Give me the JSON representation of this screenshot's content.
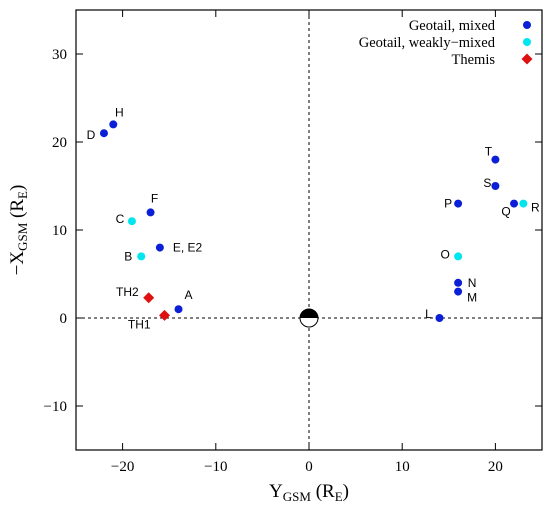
{
  "chart_data": {
    "type": "scatter",
    "xlabel": {
      "main": "Y",
      "sub": "GSM",
      "paren": " (R",
      "unit_sub": "E",
      "close": ")"
    },
    "ylabel": {
      "main": "−X",
      "sub": "GSM",
      "paren": " (R",
      "unit_sub": "E",
      "close": ")"
    },
    "xlim": [
      -25,
      25
    ],
    "ylim": [
      -15,
      35
    ],
    "xticks": [
      -20,
      -10,
      0,
      10,
      20
    ],
    "yticks": [
      -10,
      0,
      10,
      20,
      30
    ],
    "xtick_labels": [
      "−20",
      "−10",
      "0",
      "10",
      "20"
    ],
    "ytick_labels": [
      "−10",
      "0",
      "10",
      "20",
      "30"
    ],
    "grid": false,
    "reference_lines": {
      "x": 0,
      "y": 0,
      "style": "dashed"
    },
    "legend_position": "top-right",
    "colors": {
      "mixed": "#0a1fd6",
      "weakly_mixed": "#00e6ee",
      "themis": "#e01010"
    },
    "series": [
      {
        "name": "Geotail, mixed",
        "marker": "circle",
        "points": [
          {
            "label": "H",
            "x": -21,
            "y": 22
          },
          {
            "label": "D",
            "x": -22,
            "y": 21
          },
          {
            "label": "F",
            "x": -17,
            "y": 12
          },
          {
            "label": "E, E2",
            "x": -16,
            "y": 8
          },
          {
            "label": "A",
            "x": -14,
            "y": 1
          },
          {
            "label": "T",
            "x": 20,
            "y": 18
          },
          {
            "label": "S",
            "x": 20,
            "y": 15
          },
          {
            "label": "P",
            "x": 16,
            "y": 13
          },
          {
            "label": "Q",
            "x": 22,
            "y": 13
          },
          {
            "label": "N",
            "x": 16,
            "y": 4
          },
          {
            "label": "M",
            "x": 16,
            "y": 3
          },
          {
            "label": "L",
            "x": 14,
            "y": 0
          }
        ]
      },
      {
        "name": "Geotail, weakly−mixed",
        "marker": "circle",
        "points": [
          {
            "label": "C",
            "x": -19,
            "y": 11
          },
          {
            "label": "B",
            "x": -18,
            "y": 7
          },
          {
            "label": "R",
            "x": 23,
            "y": 13
          },
          {
            "label": "O",
            "x": 16,
            "y": 7
          }
        ]
      },
      {
        "name": "Themis",
        "marker": "diamond",
        "points": [
          {
            "label": "TH2",
            "x": -17.2,
            "y": 2.3
          },
          {
            "label": "TH1",
            "x": -15.5,
            "y": 0.3
          }
        ]
      }
    ]
  }
}
